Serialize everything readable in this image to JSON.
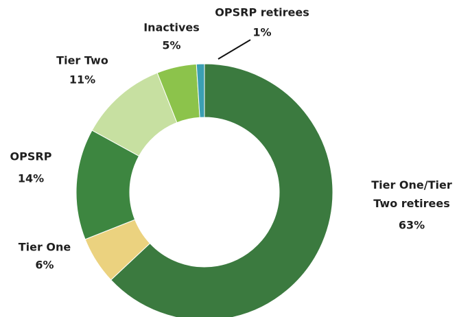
{
  "chart_data": {
    "type": "donut",
    "categories": [
      "Tier One/Tier Two retirees",
      "Tier One",
      "OPSRP",
      "Tier Two",
      "Inactives",
      "OPSRP retirees"
    ],
    "values": [
      63,
      6,
      14,
      11,
      5,
      1
    ],
    "value_labels": [
      "63%",
      "6%",
      "14%",
      "11%",
      "5%",
      "1%"
    ],
    "colors": [
      "#3b7a3f",
      "#ebd27f",
      "#3d8640",
      "#c7e0a1",
      "#8cc34b",
      "#3b9fb3"
    ]
  }
}
